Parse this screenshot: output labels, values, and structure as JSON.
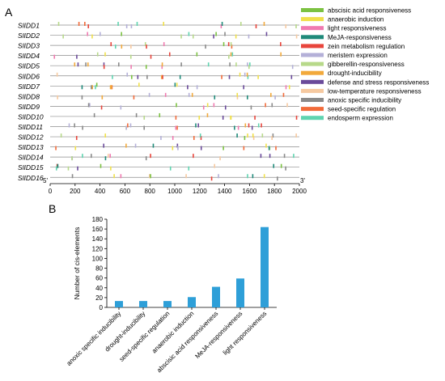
{
  "panels": {
    "a": "A",
    "b": "B"
  },
  "chart_data": [
    {
      "type": "other",
      "gene_labels": [
        "SlIDD1",
        "SlIDD2",
        "SlIDD3",
        "SlIDD4",
        "SlIDD5",
        "SlIDD6",
        "SlIDD7",
        "SlIDD8",
        "SlIDD9",
        "SlIDD10",
        "SlIDD11",
        "SlIDD12",
        "SlIDD13",
        "SlIDD14",
        "SlIDD15",
        "SlIDD16"
      ],
      "end_labels": {
        "start": "5'",
        "end": "3'"
      },
      "xlim": [
        0,
        2000
      ],
      "xticks": [
        0,
        200,
        400,
        600,
        800,
        1000,
        1200,
        1400,
        1600,
        1800,
        2000
      ],
      "legend_position": "right",
      "legend": [
        {
          "name": "abscisic acid responsiveness",
          "color": "#7cc242"
        },
        {
          "name": "anaerobic induction",
          "color": "#f0e04a"
        },
        {
          "name": "light responsiveness",
          "color": "#f07ab0"
        },
        {
          "name": "MeJA-responsiveness",
          "color": "#1f8a7a"
        },
        {
          "name": "zein metabolism regulation",
          "color": "#e8453c"
        },
        {
          "name": "meristem expression",
          "color": "#b4b0d8"
        },
        {
          "name": "gibberellin-responsiveness",
          "color": "#b7d98a"
        },
        {
          "name": "drought-inducibility",
          "color": "#f2a93b"
        },
        {
          "name": "defense and stress responsiveness",
          "color": "#6a4a9a"
        },
        {
          "name": "low-temperature responsiveness",
          "color": "#f6c9a0"
        },
        {
          "name": "anoxic specific inducibility",
          "color": "#8a8a8a"
        },
        {
          "name": "seed-specific regulation",
          "color": "#f26b3a"
        },
        {
          "name": "endosperm expression",
          "color": "#5fd4b0"
        }
      ]
    },
    {
      "type": "bar",
      "categories": [
        "anoxic specific inducibility",
        "drought-inducibility",
        "seed-specific regulation",
        "anaerobic induction",
        "abscisic acid responsiveness",
        "MeJA-responsiveness",
        "light responsiveness"
      ],
      "values": [
        13,
        13,
        13,
        21,
        42,
        59,
        164
      ],
      "ylabel": "Number of cis-elements",
      "ylim": [
        0,
        180
      ],
      "yticks": [
        0,
        20,
        40,
        60,
        80,
        100,
        120,
        140,
        160,
        180
      ],
      "bar_color": "#2e9fd8",
      "grid": false
    }
  ]
}
